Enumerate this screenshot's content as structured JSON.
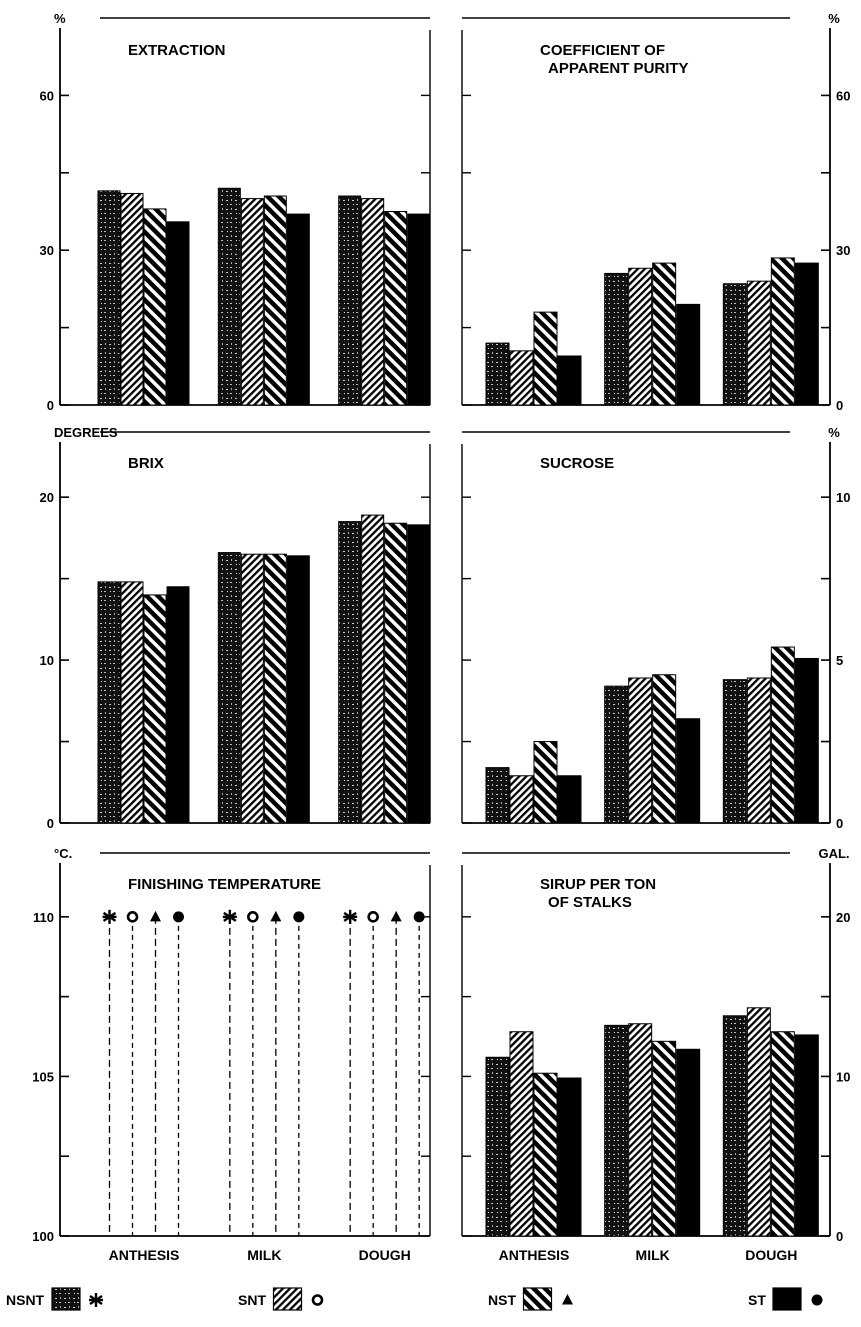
{
  "chart_data": [
    {
      "type": "bar",
      "title": "EXTRACTION",
      "unit": "%",
      "yaxis": "left",
      "ylim": [
        0,
        75
      ],
      "yticks": [
        0,
        30,
        60
      ],
      "categories": [
        "ANTHESIS",
        "MILK",
        "DOUGH"
      ],
      "show_category_labels": false,
      "series": [
        {
          "name": "NSNT",
          "values": [
            41.5,
            42,
            40.5
          ]
        },
        {
          "name": "SNT",
          "values": [
            41,
            40,
            40
          ]
        },
        {
          "name": "NST",
          "values": [
            38,
            40.5,
            37.5
          ]
        },
        {
          "name": "ST",
          "values": [
            35.5,
            37,
            37
          ]
        }
      ]
    },
    {
      "type": "bar",
      "title": "COEFFICIENT OF APPARENT PURITY",
      "unit": "%",
      "yaxis": "right",
      "ylim": [
        0,
        75
      ],
      "yticks": [
        0,
        30,
        60
      ],
      "categories": [
        "ANTHESIS",
        "MILK",
        "DOUGH"
      ],
      "show_category_labels": false,
      "series": [
        {
          "name": "NSNT",
          "values": [
            12,
            25.5,
            23.5
          ]
        },
        {
          "name": "SNT",
          "values": [
            10.5,
            26.5,
            24
          ]
        },
        {
          "name": "NST",
          "values": [
            18,
            27.5,
            28.5
          ]
        },
        {
          "name": "ST",
          "values": [
            9.5,
            19.5,
            27.5
          ]
        }
      ]
    },
    {
      "type": "bar",
      "title": "BRIX",
      "unit": "DEGREES",
      "yaxis": "left",
      "ylim": [
        0,
        24
      ],
      "yticks": [
        0,
        10,
        20
      ],
      "categories": [
        "ANTHESIS",
        "MILK",
        "DOUGH"
      ],
      "show_category_labels": false,
      "series": [
        {
          "name": "NSNT",
          "values": [
            14.8,
            16.6,
            18.5
          ]
        },
        {
          "name": "SNT",
          "values": [
            14.8,
            16.5,
            18.9
          ]
        },
        {
          "name": "NST",
          "values": [
            14,
            16.5,
            18.4
          ]
        },
        {
          "name": "ST",
          "values": [
            14.5,
            16.4,
            18.3
          ]
        }
      ]
    },
    {
      "type": "bar",
      "title": "SUCROSE",
      "unit": "%",
      "yaxis": "right",
      "ylim": [
        0,
        12
      ],
      "yticks": [
        0,
        5,
        10
      ],
      "categories": [
        "ANTHESIS",
        "MILK",
        "DOUGH"
      ],
      "show_category_labels": false,
      "series": [
        {
          "name": "NSNT",
          "values": [
            1.7,
            4.2,
            4.4
          ]
        },
        {
          "name": "SNT",
          "values": [
            1.45,
            4.45,
            4.45
          ]
        },
        {
          "name": "NST",
          "values": [
            2.5,
            4.55,
            5.4
          ]
        },
        {
          "name": "ST",
          "values": [
            1.45,
            3.2,
            5.05
          ]
        }
      ]
    },
    {
      "type": "scatter",
      "title": "FINISHING TEMPERATURE",
      "unit": "°C.",
      "yaxis": "left",
      "ylim": [
        100,
        112
      ],
      "yticks": [
        100,
        105,
        110
      ],
      "categories": [
        "ANTHESIS",
        "MILK",
        "DOUGH"
      ],
      "show_category_labels": true,
      "series": [
        {
          "name": "NSNT",
          "values": [
            110,
            110,
            110
          ]
        },
        {
          "name": "SNT",
          "values": [
            110,
            110,
            110
          ]
        },
        {
          "name": "NST",
          "values": [
            110,
            110,
            110
          ]
        },
        {
          "name": "ST",
          "values": [
            110,
            110,
            110
          ]
        }
      ]
    },
    {
      "type": "bar",
      "title": "SIRUP PER TON OF STALKS",
      "unit": "GAL.",
      "yaxis": "right",
      "ylim": [
        0,
        24
      ],
      "yticks": [
        0,
        10,
        20
      ],
      "categories": [
        "ANTHESIS",
        "MILK",
        "DOUGH"
      ],
      "show_category_labels": true,
      "series": [
        {
          "name": "NSNT",
          "values": [
            11.2,
            13.2,
            13.8
          ]
        },
        {
          "name": "SNT",
          "values": [
            12.8,
            13.3,
            14.3
          ]
        },
        {
          "name": "NST",
          "values": [
            10.2,
            12.2,
            12.8
          ]
        },
        {
          "name": "ST",
          "values": [
            9.9,
            11.7,
            12.6
          ]
        }
      ]
    }
  ],
  "legend": [
    {
      "name": "NSNT",
      "symbol": "asterisk",
      "pattern": "speckle"
    },
    {
      "name": "SNT",
      "symbol": "circle",
      "pattern": "hatch-dense"
    },
    {
      "name": "NST",
      "symbol": "triangle",
      "pattern": "hatch-wide"
    },
    {
      "name": "ST",
      "symbol": "dot",
      "pattern": "solid"
    }
  ]
}
